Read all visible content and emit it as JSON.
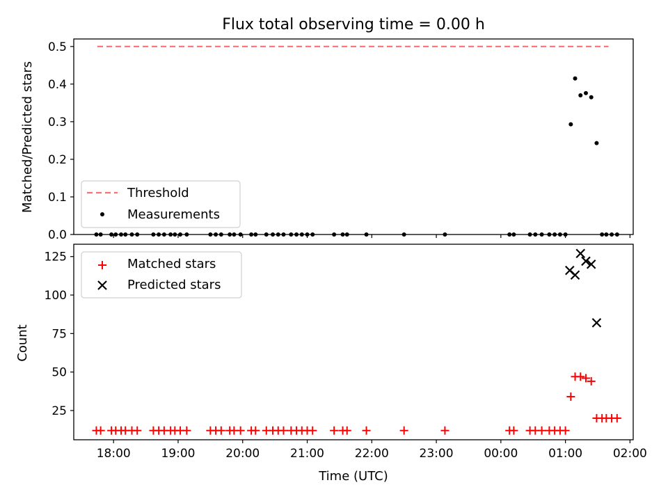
{
  "chart_data": [
    {
      "type": "scatter",
      "title": "Flux total observing time = 0.00 h",
      "xlabel": "",
      "ylabel": "Matched/Predicted stars",
      "ylim": [
        0,
        0.52
      ],
      "yticks": [
        "0.0",
        "0.1",
        "0.2",
        "0.3",
        "0.4",
        "0.5"
      ],
      "xlim": [
        "17:23",
        "02:03"
      ],
      "legend_position": "lower-left",
      "series": [
        {
          "name": "Threshold",
          "style": "dashed-line",
          "color": "#f87171",
          "x": [
            "17:45",
            "01:40"
          ],
          "y": [
            0.5,
            0.5
          ]
        },
        {
          "name": "Measurements",
          "style": "point",
          "color": "#000000",
          "x": [
            "17:44",
            "17:48",
            "17:58",
            "18:02",
            "18:07",
            "18:11",
            "18:17",
            "18:22",
            "18:37",
            "18:42",
            "18:47",
            "18:53",
            "18:57",
            "19:02",
            "19:08",
            "19:30",
            "19:35",
            "19:40",
            "19:48",
            "19:52",
            "19:58",
            "20:08",
            "20:12",
            "20:22",
            "20:28",
            "20:33",
            "20:38",
            "20:45",
            "20:50",
            "20:55",
            "21:00",
            "21:05",
            "21:25",
            "21:33",
            "21:37",
            "21:55",
            "22:30",
            "23:08",
            "00:08",
            "00:12",
            "00:27",
            "00:32",
            "00:38",
            "00:45",
            "00:50",
            "00:55",
            "01:00",
            "01:05",
            "01:09",
            "01:14",
            "01:19",
            "01:24",
            "01:29",
            "01:34",
            "01:38",
            "01:43",
            "01:48"
          ],
          "y": [
            0,
            0,
            0,
            0,
            0,
            0,
            0,
            0,
            0,
            0,
            0,
            0,
            0,
            0,
            0,
            0,
            0,
            0,
            0,
            0,
            0,
            0,
            0,
            0,
            0,
            0,
            0,
            0,
            0,
            0,
            0,
            0,
            0,
            0,
            0,
            0,
            0,
            0,
            0,
            0,
            0,
            0,
            0,
            0,
            0,
            0,
            0,
            0.293,
            0.415,
            0.37,
            0.376,
            0.365,
            0.243,
            0,
            0,
            0,
            0
          ]
        }
      ]
    },
    {
      "type": "scatter",
      "title": "",
      "xlabel": "Time (UTC)",
      "ylabel": "Count",
      "ylim": [
        6,
        133
      ],
      "yticks": [
        "25",
        "50",
        "75",
        "100",
        "125"
      ],
      "xticks": [
        "18:00",
        "19:00",
        "20:00",
        "21:00",
        "22:00",
        "23:00",
        "00:00",
        "01:00",
        "02:00"
      ],
      "xlim": [
        "17:23",
        "02:03"
      ],
      "legend_position": "top-left",
      "series": [
        {
          "name": "Matched stars",
          "marker": "plus",
          "color": "#ff0000",
          "x": [
            "17:44",
            "17:48",
            "17:58",
            "18:02",
            "18:07",
            "18:11",
            "18:17",
            "18:22",
            "18:37",
            "18:42",
            "18:47",
            "18:53",
            "18:57",
            "19:02",
            "19:08",
            "19:30",
            "19:35",
            "19:40",
            "19:48",
            "19:52",
            "19:58",
            "20:08",
            "20:12",
            "20:22",
            "20:28",
            "20:33",
            "20:38",
            "20:45",
            "20:50",
            "20:55",
            "21:00",
            "21:05",
            "21:25",
            "21:33",
            "21:37",
            "21:55",
            "22:30",
            "23:08",
            "00:08",
            "00:12",
            "00:27",
            "00:32",
            "00:38",
            "00:45",
            "00:50",
            "00:55",
            "01:00",
            "01:05",
            "01:09",
            "01:14",
            "01:19",
            "01:24",
            "01:29",
            "01:34",
            "01:38",
            "01:43",
            "01:48"
          ],
          "y": [
            12,
            12,
            12,
            12,
            12,
            12,
            12,
            12,
            12,
            12,
            12,
            12,
            12,
            12,
            12,
            12,
            12,
            12,
            12,
            12,
            12,
            12,
            12,
            12,
            12,
            12,
            12,
            12,
            12,
            12,
            12,
            12,
            12,
            12,
            12,
            12,
            12,
            12,
            12,
            12,
            12,
            12,
            12,
            12,
            12,
            12,
            12,
            34,
            47,
            47,
            46,
            44,
            20,
            20,
            20,
            20,
            20
          ]
        },
        {
          "name": "Predicted stars",
          "marker": "x",
          "color": "#000000",
          "x": [
            "01:04",
            "01:09",
            "01:14",
            "01:19",
            "01:24",
            "01:29"
          ],
          "y": [
            116,
            113,
            127,
            122,
            120,
            82
          ]
        }
      ]
    }
  ]
}
